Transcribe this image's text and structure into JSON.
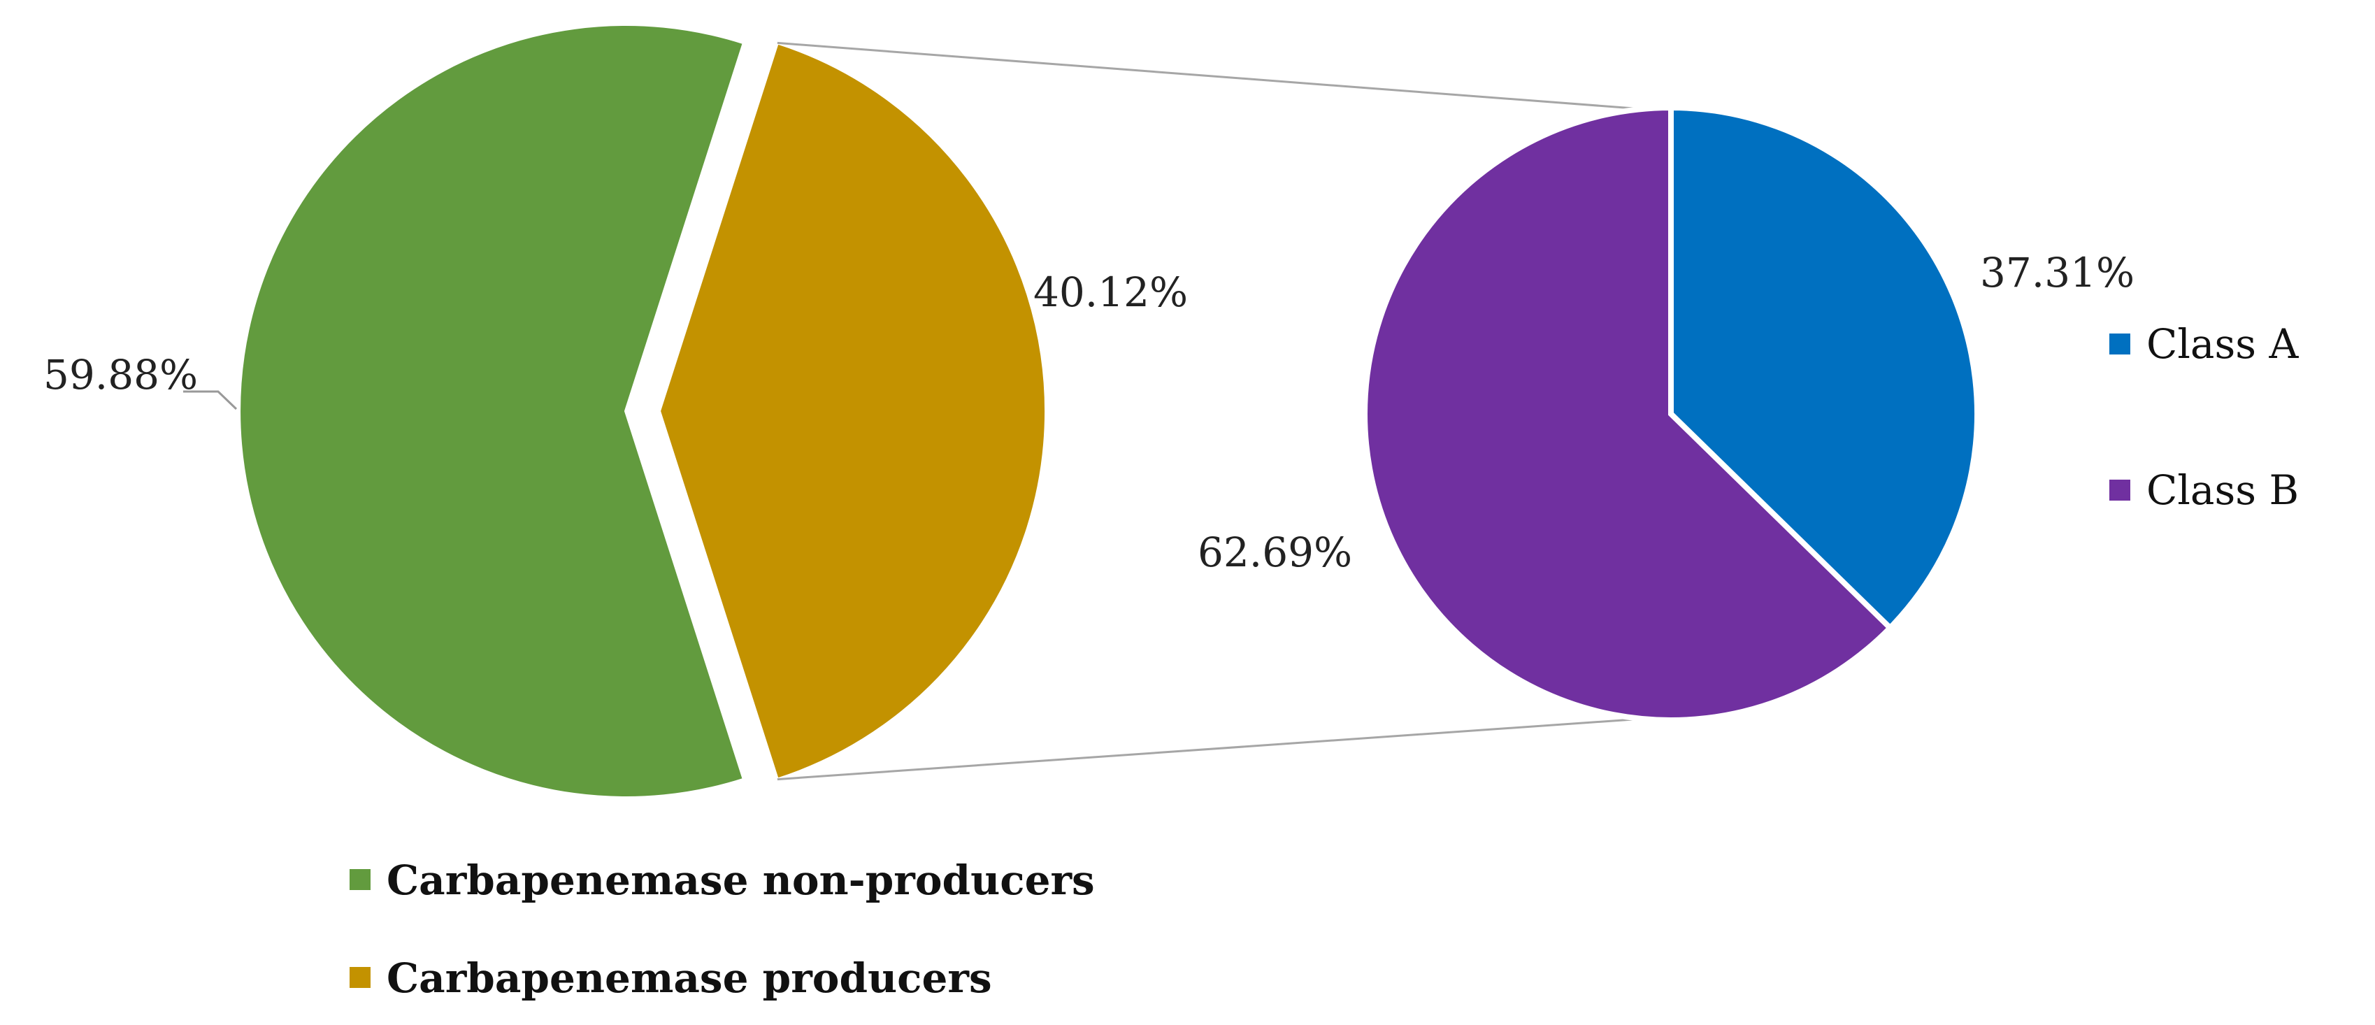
{
  "chart_data": [
    {
      "type": "pie",
      "title": "",
      "slices": [
        {
          "name": "Carbapenemase non-producers",
          "value": 59.88,
          "label": "59.88%",
          "color": "#629B3E"
        },
        {
          "name": "Carbapenemase producers",
          "value": 40.12,
          "label": "40.12%",
          "color": "#C39200",
          "exploded": true
        }
      ],
      "legend_position": "bottom"
    },
    {
      "type": "pie",
      "title": "",
      "breakdown_of": "Carbapenemase producers",
      "slices": [
        {
          "name": "Class A",
          "value": 37.31,
          "label": "37.31%",
          "color": "#0070C0"
        },
        {
          "name": "Class B",
          "value": 62.69,
          "label": "62.69%",
          "color": "#7030A0"
        }
      ],
      "legend_position": "right"
    }
  ]
}
